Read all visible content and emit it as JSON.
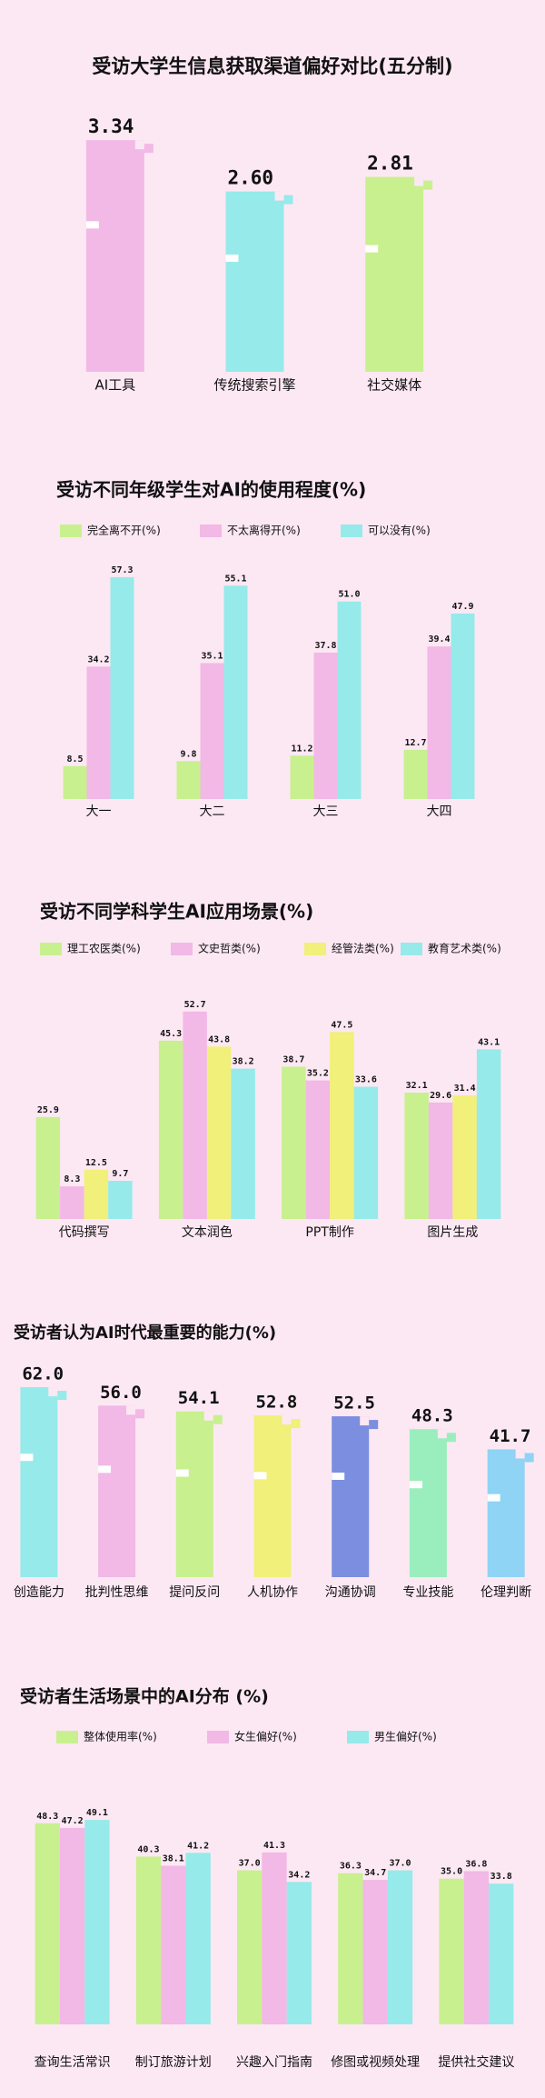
{
  "chart_data": [
    {
      "type": "bar",
      "title": "受访大学生信息获取渠道偏好对比(五分制)",
      "categories": [
        "AI工具",
        "传统搜索引擎",
        "社交媒体"
      ],
      "values": [
        3.34,
        2.6,
        2.81
      ],
      "value_labels": [
        "3.34",
        "2.60",
        "2.81"
      ],
      "colors": [
        "#f2b8e6",
        "#96eaea",
        "#c8f08f"
      ]
    },
    {
      "type": "grouped-bar",
      "title": "受访不同年级学生对AI的使用程度(%)",
      "categories": [
        "大一",
        "大二",
        "大三",
        "大四"
      ],
      "series": [
        {
          "name": "完全离不开(%)",
          "color": "#c8f08f",
          "values": [
            8.5,
            9.8,
            11.2,
            12.7
          ]
        },
        {
          "name": "不太离得开(%)",
          "color": "#f2b8e6",
          "values": [
            34.2,
            35.1,
            37.8,
            39.4
          ]
        },
        {
          "name": "可以没有(%)",
          "color": "#96eaea",
          "values": [
            57.3,
            55.1,
            51,
            47.9
          ],
          "value_labels": [
            "57.3",
            "55.1",
            "51.0",
            "47.9"
          ]
        }
      ]
    },
    {
      "type": "grouped-bar",
      "title": "受访不同学科学生AI应用场景(%)",
      "categories": [
        "代码撰写",
        "文本润色",
        "PPT制作",
        "图片生成"
      ],
      "series": [
        {
          "name": "理工农医类(%)",
          "color": "#c8f08f",
          "values": [
            25.9,
            45.3,
            38.7,
            32.1
          ]
        },
        {
          "name": "文史哲类(%)",
          "color": "#f2b8e6",
          "values": [
            8.3,
            52.7,
            35.2,
            29.6
          ]
        },
        {
          "name": "经管法类(%)",
          "color": "#f0f07a",
          "values": [
            12.5,
            43.8,
            47.5,
            31.4
          ]
        },
        {
          "name": "教育艺术类(%)",
          "color": "#96eaea",
          "values": [
            9.7,
            38.2,
            33.6,
            43.1
          ]
        }
      ]
    },
    {
      "type": "bar",
      "title": "受访者认为AI时代最重要的能力(%)",
      "categories": [
        "创造能力",
        "批判性思维",
        "提问反问",
        "人机协作",
        "沟通协调",
        "专业技能",
        "伦理判断"
      ],
      "values": [
        62,
        56,
        54.1,
        52.8,
        52.5,
        48.3,
        41.7
      ],
      "value_labels": [
        "62.0",
        "56.0",
        "54.1",
        "52.8",
        "52.5",
        "48.3",
        "41.7"
      ],
      "colors": [
        "#96eaea",
        "#f2b8e6",
        "#c8f08f",
        "#f0f07a",
        "#7b8ee0",
        "#9aeebd",
        "#8fd3f5"
      ]
    },
    {
      "type": "grouped-bar",
      "title": "受访者生活场景中的AI分布 (%)",
      "categories": [
        "查询生活常识",
        "制订旅游计划",
        "兴趣入门指南",
        "修图或视频处理",
        "提供社交建议"
      ],
      "series": [
        {
          "name": "整体使用率(%)",
          "color": "#c8f08f",
          "values": [
            48.3,
            40.3,
            37,
            36.3,
            35
          ],
          "value_labels": [
            "48.3",
            "40.3",
            "37.0",
            "36.3",
            "35.0"
          ]
        },
        {
          "name": "女生偏好(%)",
          "color": "#f2b8e6",
          "values": [
            47.2,
            38.1,
            41.3,
            34.7,
            36.8
          ]
        },
        {
          "name": "男生偏好(%)",
          "color": "#96eaea",
          "values": [
            49.1,
            41.2,
            34.2,
            37,
            33.8
          ],
          "value_labels": [
            "49.1",
            "41.2",
            "34.2",
            "37.0",
            "33.8"
          ]
        }
      ]
    }
  ]
}
